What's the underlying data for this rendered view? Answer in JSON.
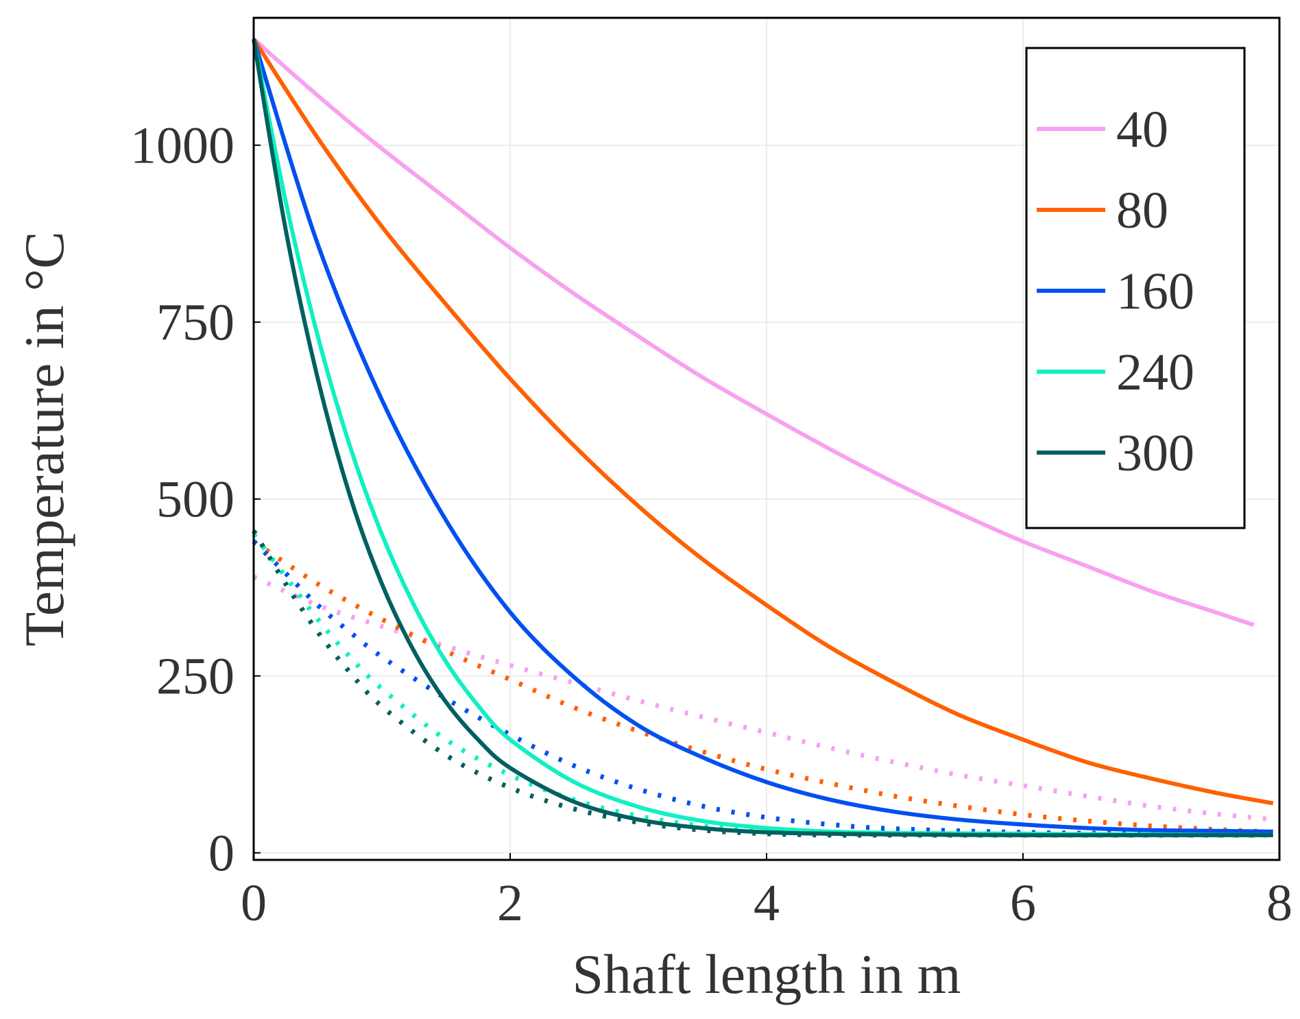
{
  "chart_data": {
    "type": "line",
    "xlabel": "Shaft length in m",
    "ylabel": "Temperature in °C",
    "xlim": [
      0,
      8
    ],
    "ylim": [
      -10,
      1180
    ],
    "xticks": [
      0,
      2,
      4,
      6,
      8
    ],
    "xtick_labels": [
      "0",
      "2",
      "4",
      "6",
      "8"
    ],
    "yticks": [
      0,
      250,
      500,
      750,
      1000
    ],
    "ytick_labels": [
      "0",
      "250",
      "500",
      "750",
      "1000"
    ],
    "grid": true,
    "legend_position": "top-right",
    "legend_entries": [
      "40",
      "80",
      "160",
      "240",
      "300"
    ],
    "series": [
      {
        "name": "40",
        "color": "#f7a1f0",
        "style": "solid",
        "x": [
          0,
          0.5,
          1,
          1.5,
          2,
          2.5,
          3,
          3.5,
          4,
          4.5,
          5,
          5.5,
          6,
          6.5,
          7,
          7.5,
          7.8
        ],
        "y": [
          1150,
          1070,
          995,
          925,
          855,
          790,
          730,
          672,
          620,
          570,
          523,
          480,
          440,
          405,
          370,
          340,
          322
        ]
      },
      {
        "name": "80",
        "color": "#ff6000",
        "style": "solid",
        "x": [
          0,
          0.5,
          1,
          1.5,
          2,
          2.5,
          3,
          3.5,
          4,
          4.5,
          5,
          5.5,
          6,
          6.5,
          7,
          7.5,
          7.95
        ],
        "y": [
          1150,
          1010,
          885,
          775,
          670,
          575,
          490,
          415,
          350,
          290,
          240,
          195,
          160,
          128,
          105,
          85,
          70
        ]
      },
      {
        "name": "160",
        "color": "#0050f0",
        "style": "solid",
        "x": [
          0,
          0.5,
          1,
          1.5,
          2,
          2.5,
          3,
          3.5,
          4,
          4.5,
          5,
          5.5,
          6,
          6.5,
          7,
          7.5,
          7.95
        ],
        "y": [
          1150,
          860,
          640,
          470,
          340,
          248,
          180,
          135,
          100,
          75,
          58,
          47,
          40,
          35,
          32,
          31,
          30
        ]
      },
      {
        "name": "240",
        "color": "#10f0c0",
        "style": "solid",
        "x": [
          0,
          0.25,
          0.5,
          0.75,
          1,
          1.25,
          1.5,
          1.75,
          2,
          2.5,
          3,
          3.5,
          4,
          4.5,
          5,
          6,
          7,
          7.95
        ],
        "y": [
          1150,
          920,
          730,
          575,
          450,
          350,
          270,
          208,
          160,
          100,
          65,
          45,
          35,
          30,
          28,
          27,
          26,
          25
        ]
      },
      {
        "name": "300",
        "color": "#006060",
        "style": "solid",
        "x": [
          0,
          0.25,
          0.5,
          0.75,
          1,
          1.25,
          1.5,
          1.75,
          2,
          2.5,
          3,
          3.5,
          4,
          4.5,
          5,
          6,
          7,
          7.95
        ],
        "y": [
          1150,
          880,
          670,
          505,
          380,
          285,
          213,
          160,
          120,
          72,
          47,
          35,
          29,
          27,
          26,
          25,
          25,
          25
        ]
      },
      {
        "name": "40",
        "color": "#f7a1f0",
        "style": "dotted",
        "x": [
          0,
          0.5,
          1,
          1.5,
          2,
          2.5,
          3,
          3.5,
          4,
          4.5,
          5,
          5.5,
          6,
          6.5,
          7,
          7.5,
          7.9
        ],
        "y": [
          390,
          350,
          320,
          292,
          265,
          240,
          215,
          192,
          170,
          148,
          128,
          110,
          95,
          80,
          66,
          55,
          48
        ]
      },
      {
        "name": "80",
        "color": "#ff6000",
        "style": "dotted",
        "x": [
          0,
          0.5,
          1,
          1.5,
          2,
          2.5,
          3,
          3.5,
          4,
          4.5,
          5,
          5.5,
          6,
          6.5,
          7,
          7.5,
          7.9
        ],
        "y": [
          440,
          380,
          330,
          285,
          245,
          205,
          172,
          143,
          118,
          98,
          80,
          66,
          54,
          45,
          38,
          33,
          30
        ]
      },
      {
        "name": "160",
        "color": "#0050f0",
        "style": "dotted",
        "x": [
          0,
          0.25,
          0.5,
          0.75,
          1,
          1.5,
          2,
          2.5,
          3,
          3.5,
          4,
          4.5,
          5,
          6,
          7,
          7.9
        ],
        "y": [
          440,
          395,
          350,
          312,
          277,
          218,
          167,
          123,
          90,
          66,
          50,
          40,
          34,
          29,
          27,
          26
        ]
      },
      {
        "name": "240",
        "color": "#10f0c0",
        "style": "dotted",
        "x": [
          0,
          0.25,
          0.5,
          0.75,
          1,
          1.5,
          2,
          2.5,
          3,
          3.5,
          4,
          4.5,
          5,
          6,
          7,
          7.9
        ],
        "y": [
          450,
          390,
          330,
          277,
          232,
          160,
          110,
          75,
          52,
          38,
          30,
          27,
          26,
          25,
          25,
          25
        ]
      },
      {
        "name": "300",
        "color": "#006060",
        "style": "dotted",
        "x": [
          0,
          0.25,
          0.5,
          0.75,
          1,
          1.5,
          2,
          2.5,
          3,
          3.5,
          4,
          4.5,
          5,
          6,
          7,
          7.9
        ],
        "y": [
          455,
          380,
          312,
          255,
          207,
          138,
          92,
          62,
          43,
          32,
          27,
          25,
          25,
          25,
          25,
          25
        ]
      }
    ]
  }
}
